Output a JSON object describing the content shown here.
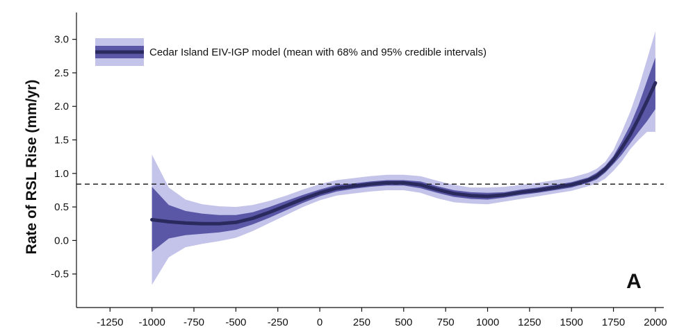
{
  "chart_data": {
    "type": "line",
    "ylabel": "Rate of RSL Rise (mm/yr)",
    "xlabel": "",
    "panel_label": "A",
    "xlim": [
      -1450,
      2050
    ],
    "ylim": [
      -1.0,
      3.4
    ],
    "x_ticks": [
      -1250,
      -1000,
      -750,
      -500,
      -250,
      0,
      250,
      500,
      750,
      1000,
      1250,
      1500,
      1750,
      2000
    ],
    "y_ticks": [
      -0.5,
      0.0,
      0.5,
      1.0,
      1.5,
      2.0,
      2.5,
      3.0
    ],
    "y_tick_labels": [
      "-0.5",
      "0.0",
      "0.5",
      "1.0",
      "1.5",
      "2.0",
      "2.5",
      "3.0"
    ],
    "reference_line": {
      "y": 0.84,
      "style": "dashed"
    },
    "legend": {
      "label": "Cedar Island EIV-IGP model (mean with 68% and 95% credible intervals)",
      "placement": "top-left"
    },
    "colors": {
      "mean": "#2a2a5e",
      "ci68": "#5a58a6",
      "ci95": "#c4c3ea",
      "axis": "#111111"
    },
    "series": [
      {
        "name": "Cedar Island EIV-IGP model (mean with 68% and 95% credible intervals)",
        "x": [
          -1000,
          -900,
          -800,
          -700,
          -600,
          -500,
          -400,
          -300,
          -200,
          -100,
          0,
          100,
          200,
          300,
          400,
          500,
          600,
          700,
          800,
          900,
          1000,
          1100,
          1200,
          1300,
          1400,
          1500,
          1600,
          1650,
          1700,
          1750,
          1800,
          1850,
          1900,
          1950,
          2000
        ],
        "mean": [
          0.31,
          0.28,
          0.26,
          0.25,
          0.25,
          0.27,
          0.33,
          0.42,
          0.52,
          0.62,
          0.71,
          0.78,
          0.81,
          0.84,
          0.86,
          0.86,
          0.83,
          0.76,
          0.7,
          0.67,
          0.66,
          0.68,
          0.72,
          0.75,
          0.79,
          0.83,
          0.9,
          0.96,
          1.06,
          1.2,
          1.38,
          1.58,
          1.82,
          2.08,
          2.35
        ],
        "ci68_low": [
          -0.17,
          0.03,
          0.08,
          0.1,
          0.12,
          0.16,
          0.24,
          0.34,
          0.45,
          0.56,
          0.66,
          0.73,
          0.77,
          0.8,
          0.82,
          0.82,
          0.78,
          0.71,
          0.65,
          0.62,
          0.61,
          0.64,
          0.68,
          0.71,
          0.75,
          0.79,
          0.86,
          0.91,
          1.01,
          1.14,
          1.28,
          1.45,
          1.62,
          1.78,
          1.96
        ],
        "ci68_high": [
          0.8,
          0.53,
          0.44,
          0.4,
          0.38,
          0.38,
          0.42,
          0.5,
          0.59,
          0.68,
          0.76,
          0.83,
          0.85,
          0.88,
          0.9,
          0.9,
          0.88,
          0.81,
          0.75,
          0.72,
          0.71,
          0.72,
          0.76,
          0.79,
          0.83,
          0.87,
          0.94,
          1.01,
          1.11,
          1.26,
          1.48,
          1.72,
          2.02,
          2.38,
          2.73
        ],
        "ci95_low": [
          -0.66,
          -0.25,
          -0.1,
          -0.05,
          -0.01,
          0.04,
          0.14,
          0.26,
          0.38,
          0.5,
          0.6,
          0.67,
          0.7,
          0.73,
          0.75,
          0.75,
          0.71,
          0.63,
          0.57,
          0.55,
          0.54,
          0.58,
          0.62,
          0.66,
          0.7,
          0.74,
          0.81,
          0.85,
          0.92,
          1.04,
          1.18,
          1.36,
          1.5,
          1.62,
          1.62
        ],
        "ci95_high": [
          1.28,
          0.79,
          0.61,
          0.54,
          0.51,
          0.5,
          0.53,
          0.59,
          0.67,
          0.76,
          0.84,
          0.9,
          0.93,
          0.96,
          0.98,
          0.98,
          0.96,
          0.89,
          0.83,
          0.79,
          0.79,
          0.8,
          0.83,
          0.86,
          0.9,
          0.94,
          1.01,
          1.07,
          1.17,
          1.35,
          1.62,
          1.92,
          2.28,
          2.7,
          3.12
        ]
      }
    ],
    "grid": false
  }
}
